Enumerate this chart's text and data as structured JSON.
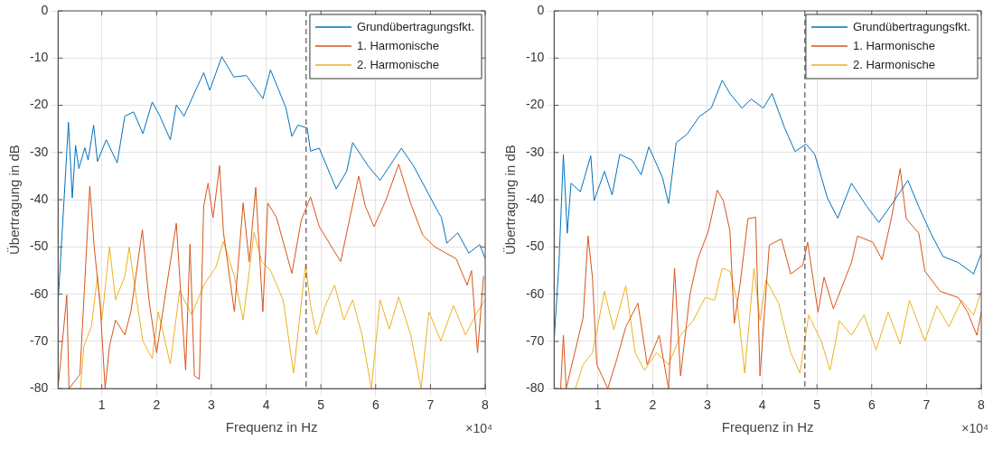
{
  "chart_data": [
    {
      "type": "line",
      "xlabel": "Frequenz in Hz",
      "ylabel": "Übertragung in dB",
      "xlim": [
        0.2,
        8
      ],
      "ylim": [
        -80,
        0
      ],
      "xticks": [
        1,
        2,
        3,
        4,
        5,
        6,
        7,
        8
      ],
      "yticks": [
        -80,
        -70,
        -60,
        -50,
        -40,
        -30,
        -20,
        -10,
        0
      ],
      "grid": true,
      "legend": "top right",
      "marker": "none",
      "line_style": "solid",
      "annotations": [
        "×10⁴"
      ],
      "ref_lines": [
        {
          "axis": "x",
          "value": 4.73,
          "color": "#555555",
          "line_style": "dashed"
        }
      ],
      "series": [
        {
          "name": "Grundübertragungsfkt.",
          "color": "#0072bd",
          "x": [
            0.2,
            0.31,
            0.39,
            0.46,
            0.52,
            0.58,
            0.69,
            0.75,
            0.85,
            0.92,
            1.08,
            1.28,
            1.42,
            1.58,
            1.75,
            1.92,
            2.06,
            2.25,
            2.36,
            2.5,
            2.69,
            2.86,
            2.97,
            3.19,
            3.41,
            3.64,
            3.94,
            4.08,
            4.36,
            4.47,
            4.58,
            4.75,
            4.81,
            4.97,
            5.28,
            5.47,
            5.58,
            5.86,
            6.08,
            6.47,
            6.69,
            7.03,
            7.14,
            7.2,
            7.3,
            7.5,
            7.7,
            7.9,
            8.0
          ],
          "values": [
            -62,
            -40,
            -23.6,
            -39.6,
            -28.5,
            -33.4,
            -29,
            -31.6,
            -24.2,
            -31.9,
            -27.3,
            -32.2,
            -22.3,
            -21.4,
            -26,
            -19.3,
            -22.3,
            -27.3,
            -19.9,
            -22.3,
            -17.4,
            -13.1,
            -16.8,
            -9.7,
            -14,
            -13.7,
            -18.6,
            -12.5,
            -20.5,
            -26.6,
            -24.2,
            -24.8,
            -29.7,
            -29.1,
            -37.7,
            -34,
            -27.9,
            -32.8,
            -35.9,
            -29.1,
            -32.8,
            -40.2,
            -42.6,
            -43.7,
            -49.2,
            -47,
            -51.3,
            -49.5,
            -52.5
          ]
        },
        {
          "name": "1. Harmonische",
          "color": "#d95319",
          "x": [
            0.2,
            0.36,
            0.4,
            0.6,
            0.78,
            0.86,
            0.97,
            1.06,
            1.14,
            1.25,
            1.42,
            1.53,
            1.74,
            1.86,
            2.0,
            2.17,
            2.36,
            2.53,
            2.61,
            2.69,
            2.78,
            2.86,
            2.94,
            3.03,
            3.15,
            3.22,
            3.42,
            3.58,
            3.69,
            3.81,
            3.94,
            4.03,
            4.19,
            4.47,
            4.64,
            4.81,
            4.97,
            5.36,
            5.69,
            5.81,
            5.97,
            6.19,
            6.42,
            6.64,
            6.86,
            7.08,
            7.47,
            7.67,
            7.75,
            7.86,
            7.97
          ],
          "values": [
            -80,
            -60.2,
            -80,
            -77,
            -37.1,
            -50,
            -62.4,
            -80,
            -71,
            -65.5,
            -68.6,
            -63.7,
            -46.3,
            -61.2,
            -72.4,
            -59.3,
            -45,
            -76.1,
            -49.4,
            -77.3,
            -78,
            -41.3,
            -36.5,
            -43.8,
            -32.8,
            -46.9,
            -63.7,
            -40.7,
            -53.1,
            -37.4,
            -63.7,
            -40.7,
            -43.8,
            -55.6,
            -44.4,
            -39.4,
            -45.7,
            -53.1,
            -35,
            -41.3,
            -45.7,
            -40,
            -32.5,
            -40.8,
            -47.5,
            -50,
            -52.5,
            -58.1,
            -55,
            -72.4,
            -56.2
          ]
        },
        {
          "name": "2. Harmonische",
          "color": "#edb120",
          "x": [
            0.61,
            0.67,
            0.81,
            0.92,
            1.0,
            1.14,
            1.25,
            1.42,
            1.5,
            1.61,
            1.75,
            1.92,
            2.03,
            2.25,
            2.42,
            2.64,
            2.86,
            3.08,
            3.22,
            3.42,
            3.58,
            3.78,
            3.92,
            4.08,
            4.31,
            4.5,
            4.72,
            4.81,
            4.92,
            5.08,
            5.25,
            5.42,
            5.58,
            5.75,
            5.92,
            6.08,
            6.25,
            6.42,
            6.64,
            6.83,
            6.97,
            7.19,
            7.42,
            7.64,
            7.86,
            8.0
          ],
          "values": [
            -80,
            -71.1,
            -66.8,
            -56.2,
            -65.5,
            -50,
            -61.2,
            -56.2,
            -50,
            -59.3,
            -69.9,
            -73.6,
            -63.7,
            -74.8,
            -59.3,
            -64.3,
            -58.1,
            -54.3,
            -48.8,
            -56.2,
            -65.5,
            -46.9,
            -53.1,
            -55,
            -61.2,
            -76.7,
            -53.7,
            -62.4,
            -68.6,
            -62.4,
            -58.1,
            -65.5,
            -61.2,
            -68.6,
            -80,
            -61.2,
            -67.4,
            -60.6,
            -68.6,
            -80,
            -63.7,
            -69.9,
            -62.4,
            -68.6,
            -63.7,
            -61.2
          ]
        }
      ]
    },
    {
      "type": "line",
      "xlabel": "Frequenz in Hz",
      "ylabel": "Übertragung in dB",
      "xlim": [
        0.2,
        8
      ],
      "ylim": [
        -80,
        0
      ],
      "xticks": [
        1,
        2,
        3,
        4,
        5,
        6,
        7,
        8
      ],
      "yticks": [
        -80,
        -70,
        -60,
        -50,
        -40,
        -30,
        -20,
        -10,
        0
      ],
      "grid": true,
      "legend": "top right",
      "marker": "none",
      "line_style": "solid",
      "annotations": [
        "×10⁴"
      ],
      "ref_lines": [
        {
          "axis": "x",
          "value": 4.78,
          "color": "#555555",
          "line_style": "dashed"
        }
      ],
      "series": [
        {
          "name": "Grundübertragungsfkt.",
          "color": "#0072bd",
          "x": [
            0.2,
            0.29,
            0.37,
            0.44,
            0.51,
            0.68,
            0.87,
            0.93,
            1.12,
            1.26,
            1.4,
            1.62,
            1.79,
            1.93,
            2.18,
            2.29,
            2.43,
            2.63,
            2.85,
            3.07,
            3.27,
            3.41,
            3.63,
            3.8,
            4.02,
            4.18,
            4.41,
            4.6,
            4.8,
            4.96,
            5.19,
            5.38,
            5.63,
            5.91,
            6.13,
            6.41,
            6.66,
            6.86,
            7.08,
            7.3,
            7.58,
            7.86,
            8.0
          ],
          "values": [
            -70,
            -53.3,
            -30.4,
            -47.1,
            -36.5,
            -38.3,
            -30.7,
            -40.2,
            -34,
            -39,
            -30.4,
            -31.6,
            -34.7,
            -28.8,
            -35.3,
            -40.8,
            -27.9,
            -26.1,
            -22.4,
            -20.6,
            -14.7,
            -17.5,
            -20.6,
            -18.7,
            -20.6,
            -17.5,
            -24.8,
            -29.8,
            -28.2,
            -30.4,
            -39.6,
            -43.9,
            -36.5,
            -41.4,
            -44.8,
            -40.2,
            -35.9,
            -41.5,
            -47.1,
            -52,
            -53.3,
            -55.7,
            -51.4
          ]
        },
        {
          "name": "1. Harmonische",
          "color": "#d95319",
          "x": [
            0.32,
            0.37,
            0.42,
            0.73,
            0.82,
            0.9,
            0.98,
            1.18,
            1.35,
            1.51,
            1.73,
            1.9,
            2.12,
            2.29,
            2.4,
            2.51,
            2.68,
            2.82,
            3.02,
            3.18,
            3.29,
            3.41,
            3.49,
            3.6,
            3.74,
            3.88,
            3.96,
            4.13,
            4.35,
            4.52,
            4.74,
            4.83,
            5.02,
            5.13,
            5.3,
            5.63,
            5.74,
            6.02,
            6.19,
            6.36,
            6.52,
            6.63,
            6.86,
            6.97,
            7.25,
            7.58,
            7.75,
            7.92,
            8.0
          ],
          "values": [
            -80,
            -68.7,
            -80,
            -65,
            -47.7,
            -56.4,
            -74.9,
            -80,
            -73.6,
            -66.9,
            -61.9,
            -74.9,
            -68.7,
            -80,
            -54.5,
            -77.3,
            -60.1,
            -52.7,
            -46.5,
            -38,
            -40.2,
            -46.5,
            -66.2,
            -57.6,
            -44,
            -43.7,
            -77.3,
            -49.6,
            -48.3,
            -55.7,
            -53.9,
            -49,
            -63.8,
            -56.4,
            -63.1,
            -53.3,
            -47.7,
            -49,
            -52.7,
            -43.9,
            -33.4,
            -44,
            -47.1,
            -55.1,
            -59.4,
            -60.7,
            -63.8,
            -68.7,
            -63.8
          ]
        },
        {
          "name": "2. Harmonische",
          "color": "#edb120",
          "x": [
            0.59,
            0.73,
            0.9,
            1.12,
            1.29,
            1.51,
            1.68,
            1.85,
            2.07,
            2.29,
            2.51,
            2.74,
            2.96,
            3.13,
            3.27,
            3.41,
            3.54,
            3.68,
            3.85,
            3.96,
            4.07,
            4.3,
            4.52,
            4.69,
            4.85,
            5.08,
            5.24,
            5.41,
            5.63,
            5.86,
            6.08,
            6.3,
            6.52,
            6.69,
            6.97,
            7.19,
            7.41,
            7.64,
            7.86,
            8.0
          ],
          "values": [
            -80,
            -74.9,
            -72.4,
            -59.4,
            -67.5,
            -58.2,
            -72.4,
            -76.1,
            -72.4,
            -74.9,
            -68.7,
            -65.6,
            -60.7,
            -61.3,
            -54.5,
            -55.1,
            -61.3,
            -76.7,
            -54.5,
            -65.6,
            -57,
            -61.9,
            -72.4,
            -76.7,
            -64.4,
            -70,
            -76.1,
            -65.6,
            -68.7,
            -64.4,
            -71.8,
            -63.8,
            -70.6,
            -61.3,
            -69.9,
            -62.5,
            -66.9,
            -61.3,
            -64.4,
            -59.4
          ]
        }
      ]
    }
  ]
}
